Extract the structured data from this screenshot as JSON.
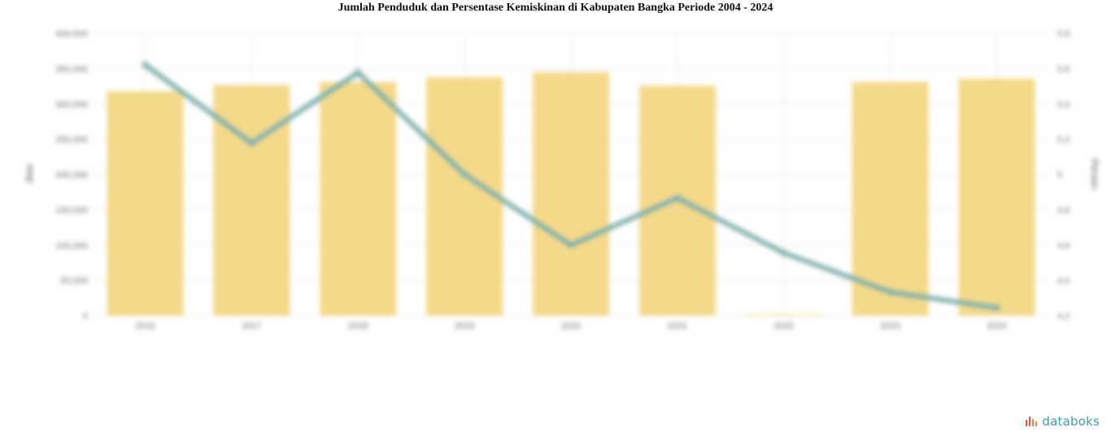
{
  "page": {
    "title": "Jumlah Penduduk dan Persentase Kemiskinan di Kabupaten Bangka Periode 2004 - 2024"
  },
  "brand": {
    "name": "databoks"
  },
  "colors": {
    "bar": "#f5d98a",
    "line": "#7fb0ad",
    "grid": "#e6e6e6",
    "brand": "#3a9fb0",
    "brand_icon": "#e8553b"
  },
  "chart_data": {
    "type": "bar+line",
    "title": "Jumlah Penduduk dan Persentase Kemiskinan di Kabupaten Bangka Periode 2004 - 2024",
    "categories": [
      "2016",
      "2017",
      "2018",
      "2019",
      "2020",
      "2021",
      "2022",
      "2023",
      "2024"
    ],
    "series": [
      {
        "type": "bar",
        "axis": "left",
        "values": [
          318000,
          327000,
          331000,
          338000,
          345000,
          326000,
          2000,
          331000,
          336000
        ]
      },
      {
        "type": "line",
        "axis": "right",
        "values": [
          5.6,
          5.1,
          5.55,
          4.9,
          4.45,
          4.75,
          4.4,
          4.15,
          4.05
        ]
      }
    ],
    "y_left": {
      "label": "Jiwa",
      "ticks": [
        "400,000",
        "350,000",
        "300,000",
        "250,000",
        "200,000",
        "150,000",
        "100,000",
        "50,000",
        "0"
      ],
      "min": 0,
      "max": 400000
    },
    "y_right": {
      "label": "Persen",
      "ticks": [
        "5.8",
        "5.6",
        "5.4",
        "5.2",
        "5",
        "4.8",
        "4.6",
        "4.4",
        "4.2"
      ],
      "min": 4.0,
      "max": 5.8
    },
    "grid": true,
    "legend": "none"
  }
}
